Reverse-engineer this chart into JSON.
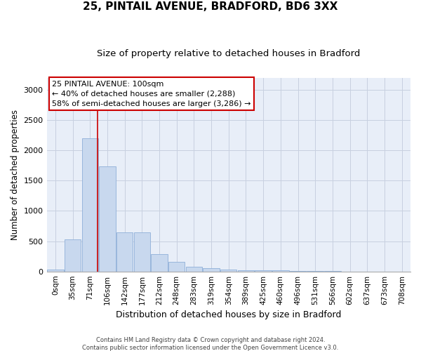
{
  "title": "25, PINTAIL AVENUE, BRADFORD, BD6 3XX",
  "subtitle": "Size of property relative to detached houses in Bradford",
  "xlabel": "Distribution of detached houses by size in Bradford",
  "ylabel": "Number of detached properties",
  "footer_line1": "Contains HM Land Registry data © Crown copyright and database right 2024.",
  "footer_line2": "Contains public sector information licensed under the Open Government Licence v3.0.",
  "categories": [
    "0sqm",
    "35sqm",
    "71sqm",
    "106sqm",
    "142sqm",
    "177sqm",
    "212sqm",
    "248sqm",
    "283sqm",
    "319sqm",
    "354sqm",
    "389sqm",
    "425sqm",
    "460sqm",
    "496sqm",
    "531sqm",
    "566sqm",
    "602sqm",
    "637sqm",
    "673sqm",
    "708sqm"
  ],
  "values": [
    30,
    525,
    2200,
    1730,
    640,
    640,
    290,
    155,
    80,
    50,
    35,
    25,
    20,
    18,
    8,
    5,
    5,
    2,
    2,
    2,
    2
  ],
  "bar_color": "#c8d8ee",
  "bar_edge_color": "#8fafd8",
  "grid_color": "#c8d0e0",
  "background_color": "#e8eef8",
  "vline_x": 2.45,
  "vline_color": "#cc0000",
  "ylim": [
    0,
    3200
  ],
  "yticks": [
    0,
    500,
    1000,
    1500,
    2000,
    2500,
    3000
  ],
  "annotation_text": "25 PINTAIL AVENUE: 100sqm\n← 40% of detached houses are smaller (2,288)\n58% of semi-detached houses are larger (3,286) →",
  "annotation_box_color": "#cc0000",
  "title_fontsize": 11,
  "subtitle_fontsize": 9.5,
  "annotation_fontsize": 8,
  "xlabel_fontsize": 9,
  "ylabel_fontsize": 8.5,
  "tick_fontsize": 7.5,
  "footer_fontsize": 6
}
